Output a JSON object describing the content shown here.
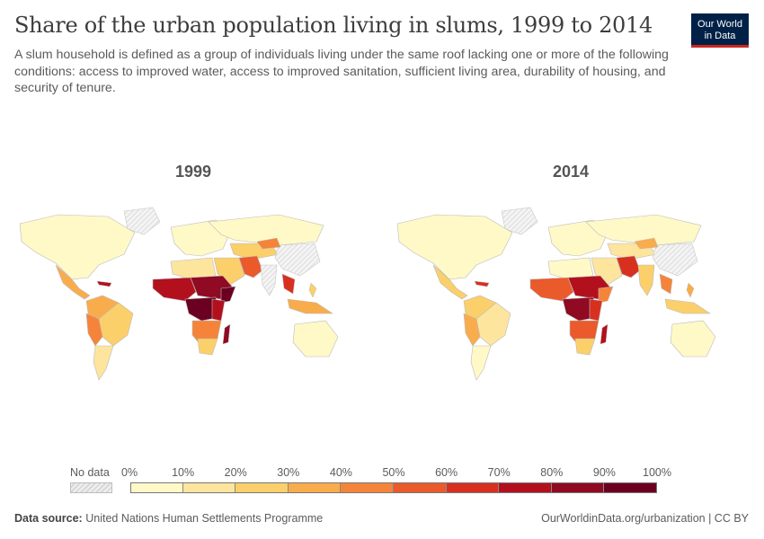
{
  "header": {
    "title": "Share of the urban population living in slums, 1999 to 2014",
    "subtitle": "A slum household is defined as a group of individuals living under the same roof lacking one or more of the following conditions: access to improved water, access to improved sanitation, sufficient living area, durability of housing, and security of tenure.",
    "logo_line1": "Our World",
    "logo_line2": "in Data"
  },
  "maps": [
    {
      "year": "1999"
    },
    {
      "year": "2014"
    }
  ],
  "legend": {
    "no_data_label": "No data",
    "ticks": [
      "0%",
      "10%",
      "20%",
      "30%",
      "40%",
      "50%",
      "60%",
      "70%",
      "80%",
      "90%",
      "100%"
    ],
    "bin_colors": [
      "#fef9c7",
      "#fde59e",
      "#fbcf6a",
      "#f9ac4b",
      "#f5843a",
      "#ea5a2b",
      "#d8301f",
      "#b3101e",
      "#8f0a22",
      "#6b0020"
    ],
    "no_data_color": "#e8e8e8"
  },
  "footer": {
    "source_label": "Data source:",
    "source_text": "United Nations Human Settlements Programme",
    "link_text": "OurWorldinData.org/urbanization | CC BY"
  }
}
